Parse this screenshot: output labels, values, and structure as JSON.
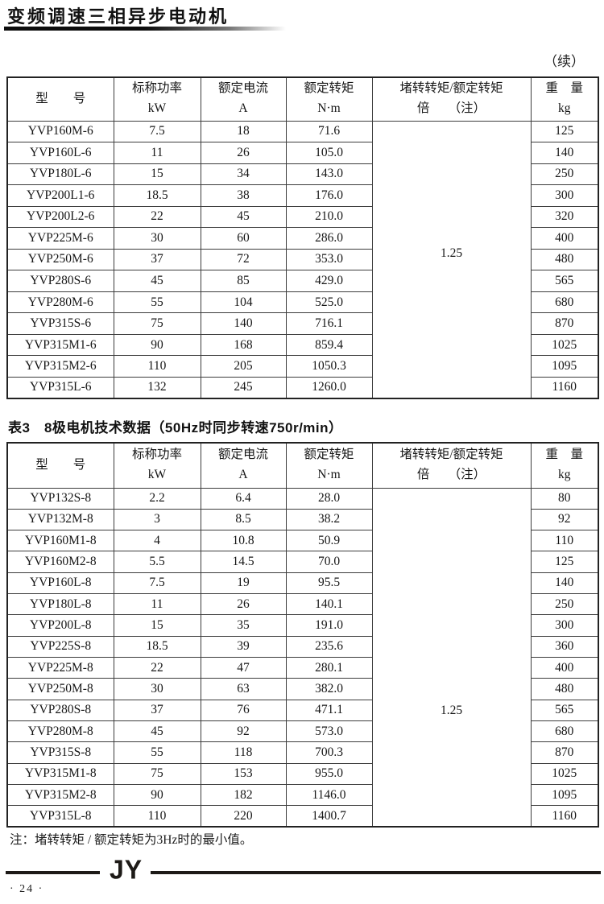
{
  "page": {
    "header_title": "变频调速三相异步电动机",
    "continued_label": "（续）",
    "note": "注：堵转转矩 / 额定转矩为3Hz时的最小值。",
    "footer_logo": "JY",
    "page_number": "· 24 ·"
  },
  "table_headers": {
    "model": "型　　号",
    "power": "标称功率",
    "power_unit": "kW",
    "current": "额定电流",
    "current_unit": "A",
    "torque": "额定转矩",
    "torque_unit": "N·m",
    "ratio": "堵转转矩/额定转矩",
    "ratio_unit": "倍　　（注）",
    "weight": "重　量",
    "weight_unit": "kg"
  },
  "table1": {
    "torque_ratio": "1.25",
    "rows": [
      [
        "YVP160M-6",
        "7.5",
        "18",
        "71.6",
        "125"
      ],
      [
        "YVP160L-6",
        "11",
        "26",
        "105.0",
        "140"
      ],
      [
        "YVP180L-6",
        "15",
        "34",
        "143.0",
        "250"
      ],
      [
        "YVP200L1-6",
        "18.5",
        "38",
        "176.0",
        "300"
      ],
      [
        "YVP200L2-6",
        "22",
        "45",
        "210.0",
        "320"
      ],
      [
        "YVP225M-6",
        "30",
        "60",
        "286.0",
        "400"
      ],
      [
        "YVP250M-6",
        "37",
        "72",
        "353.0",
        "480"
      ],
      [
        "YVP280S-6",
        "45",
        "85",
        "429.0",
        "565"
      ],
      [
        "YVP280M-6",
        "55",
        "104",
        "525.0",
        "680"
      ],
      [
        "YVP315S-6",
        "75",
        "140",
        "716.1",
        "870"
      ],
      [
        "YVP315M1-6",
        "90",
        "168",
        "859.4",
        "1025"
      ],
      [
        "YVP315M2-6",
        "110",
        "205",
        "1050.3",
        "1095"
      ],
      [
        "YVP315L-6",
        "132",
        "245",
        "1260.0",
        "1160"
      ]
    ]
  },
  "table3": {
    "title": "表3　8极电机技术数据（50Hz时同步转速750r/min）",
    "torque_ratio": "1.25",
    "rows": [
      [
        "YVP132S-8",
        "2.2",
        "6.4",
        "28.0",
        "80"
      ],
      [
        "YVP132M-8",
        "3",
        "8.5",
        "38.2",
        "92"
      ],
      [
        "YVP160M1-8",
        "4",
        "10.8",
        "50.9",
        "110"
      ],
      [
        "YVP160M2-8",
        "5.5",
        "14.5",
        "70.0",
        "125"
      ],
      [
        "YVP160L-8",
        "7.5",
        "19",
        "95.5",
        "140"
      ],
      [
        "YVP180L-8",
        "11",
        "26",
        "140.1",
        "250"
      ],
      [
        "YVP200L-8",
        "15",
        "35",
        "191.0",
        "300"
      ],
      [
        "YVP225S-8",
        "18.5",
        "39",
        "235.6",
        "360"
      ],
      [
        "YVP225M-8",
        "22",
        "47",
        "280.1",
        "400"
      ],
      [
        "YVP250M-8",
        "30",
        "63",
        "382.0",
        "480"
      ],
      [
        "YVP280S-8",
        "37",
        "76",
        "471.1",
        "565"
      ],
      [
        "YVP280M-8",
        "45",
        "92",
        "573.0",
        "680"
      ],
      [
        "YVP315S-8",
        "55",
        "118",
        "700.3",
        "870"
      ],
      [
        "YVP315M1-8",
        "75",
        "153",
        "955.0",
        "1025"
      ],
      [
        "YVP315M2-8",
        "90",
        "182",
        "1146.0",
        "1095"
      ],
      [
        "YVP315L-8",
        "110",
        "220",
        "1400.7",
        "1160"
      ]
    ]
  }
}
